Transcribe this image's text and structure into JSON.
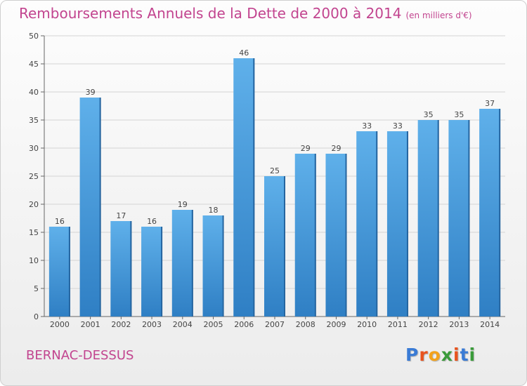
{
  "title": "Remboursements Annuels de la Dette de 2000 à 2014",
  "subtitle": "(en milliers d'€)",
  "place": "BERNAC-DESSUS",
  "logo": {
    "letters": [
      "P",
      "r",
      "o",
      "x",
      "i",
      "t",
      "i"
    ],
    "colors": [
      "#3a7bd5",
      "#e8531e",
      "#f3a21c",
      "#3a9b3a",
      "#e8531e",
      "#3a7bd5",
      "#3a9b3a"
    ]
  },
  "chart_data": {
    "type": "bar",
    "title": "Remboursements Annuels de la Dette de 2000 à 2014",
    "subtitle": "(en milliers d'€)",
    "categories": [
      "2000",
      "2001",
      "2002",
      "2003",
      "2004",
      "2005",
      "2006",
      "2007",
      "2008",
      "2009",
      "2010",
      "2011",
      "2012",
      "2013",
      "2014"
    ],
    "values": [
      16,
      39,
      17,
      16,
      19,
      18,
      46,
      25,
      29,
      29,
      33,
      33,
      35,
      35,
      37
    ],
    "ylim": [
      0,
      50
    ],
    "yticks": [
      0,
      5,
      10,
      15,
      20,
      25,
      30,
      35,
      40,
      45,
      50
    ],
    "grid": true,
    "bar_color": "#4a9ee0",
    "data_labels": true
  }
}
